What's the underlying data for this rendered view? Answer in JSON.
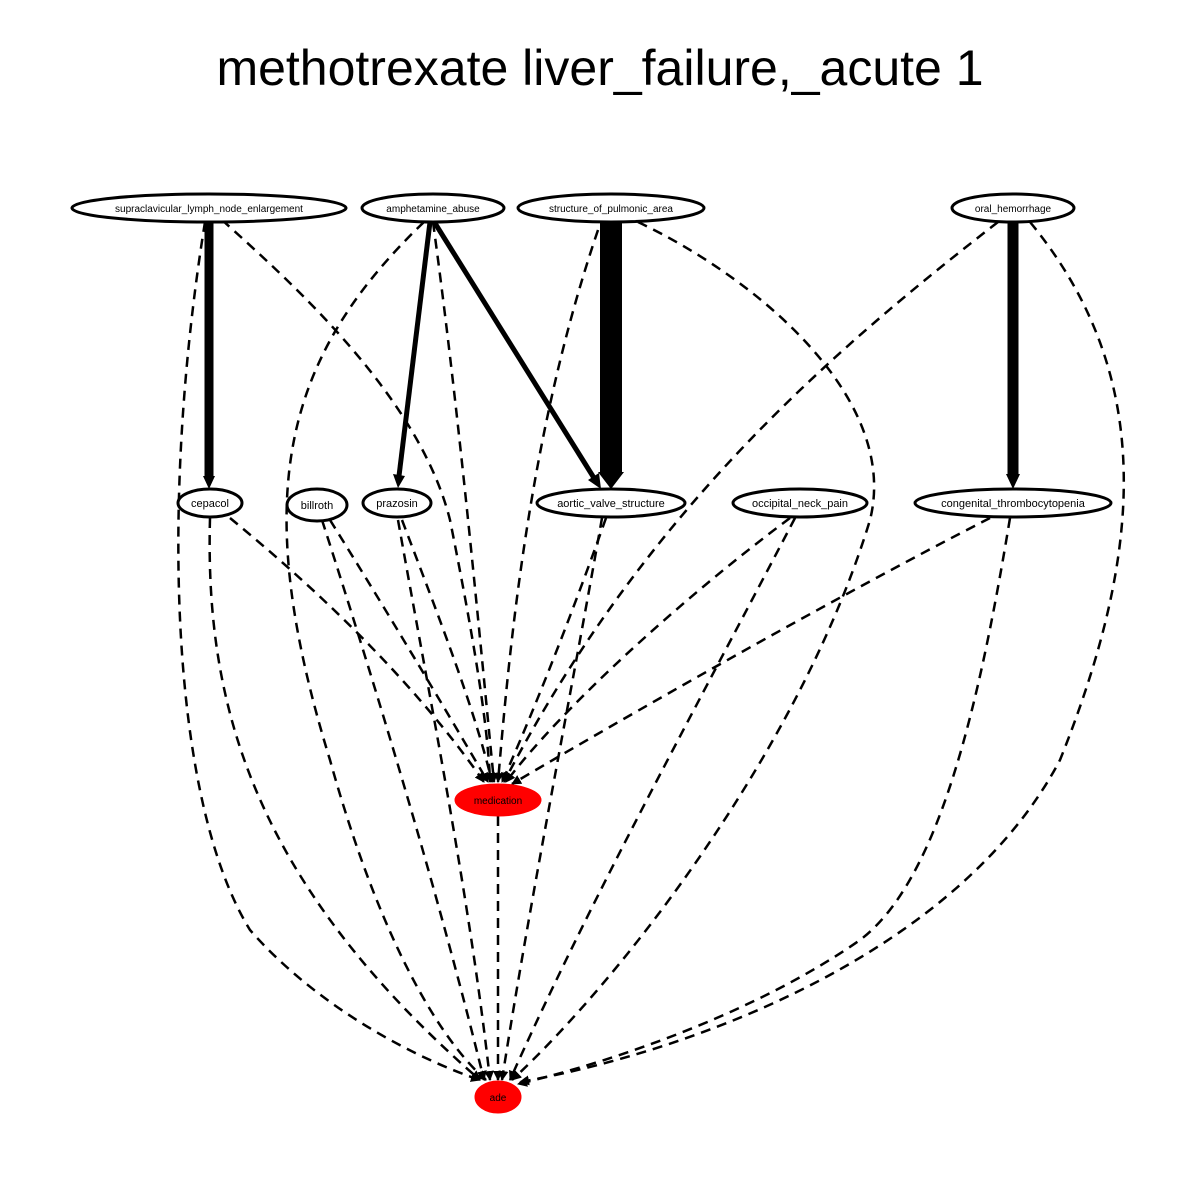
{
  "title": "methotrexate liver_failure,_acute 1",
  "colors": {
    "background": "#ffffff",
    "outcome_node": "#ff0000",
    "ink": "#000000"
  },
  "nodes": {
    "supraclavicular_lymph_node_enlargement": {
      "label": "supraclavicular_lymph_node_enlargement"
    },
    "amphetamine_abuse": {
      "label": "amphetamine_abuse"
    },
    "structure_of_pulmonic_area": {
      "label": "structure_of_pulmonic_area"
    },
    "oral_hemorrhage": {
      "label": "oral_hemorrhage"
    },
    "cepacol": {
      "label": "cepacol"
    },
    "billroth": {
      "label": "billroth"
    },
    "prazosin": {
      "label": "prazosin"
    },
    "aortic_valve_structure": {
      "label": "aortic_valve_structure"
    },
    "occipital_neck_pain": {
      "label": "occipital_neck_pain"
    },
    "congenital_thrombocytopenia": {
      "label": "congenital_thrombocytopenia"
    },
    "medication": {
      "label": "medication"
    },
    "ade": {
      "label": "ade"
    }
  },
  "edges": [
    {
      "from": "supraclavicular_lymph_node_enlargement",
      "to": "cepacol",
      "style": "solid",
      "weight": "heavy"
    },
    {
      "from": "supraclavicular_lymph_node_enlargement",
      "to": "medication",
      "style": "dashed"
    },
    {
      "from": "supraclavicular_lymph_node_enlargement",
      "to": "ade",
      "style": "dashed"
    },
    {
      "from": "amphetamine_abuse",
      "to": "prazosin",
      "style": "solid",
      "weight": "medium"
    },
    {
      "from": "amphetamine_abuse",
      "to": "aortic_valve_structure",
      "style": "solid",
      "weight": "medium"
    },
    {
      "from": "amphetamine_abuse",
      "to": "medication",
      "style": "dashed"
    },
    {
      "from": "amphetamine_abuse",
      "to": "ade",
      "style": "dashed"
    },
    {
      "from": "structure_of_pulmonic_area",
      "to": "aortic_valve_structure",
      "style": "solid",
      "weight": "very heavy"
    },
    {
      "from": "structure_of_pulmonic_area",
      "to": "medication",
      "style": "dashed"
    },
    {
      "from": "structure_of_pulmonic_area",
      "to": "ade",
      "style": "dashed"
    },
    {
      "from": "oral_hemorrhage",
      "to": "congenital_thrombocytopenia",
      "style": "solid",
      "weight": "heavy"
    },
    {
      "from": "oral_hemorrhage",
      "to": "medication",
      "style": "dashed"
    },
    {
      "from": "oral_hemorrhage",
      "to": "ade",
      "style": "dashed"
    },
    {
      "from": "cepacol",
      "to": "medication",
      "style": "dashed"
    },
    {
      "from": "cepacol",
      "to": "ade",
      "style": "dashed"
    },
    {
      "from": "billroth",
      "to": "medication",
      "style": "dashed"
    },
    {
      "from": "billroth",
      "to": "ade",
      "style": "dashed"
    },
    {
      "from": "prazosin",
      "to": "medication",
      "style": "dashed"
    },
    {
      "from": "prazosin",
      "to": "ade",
      "style": "dashed"
    },
    {
      "from": "aortic_valve_structure",
      "to": "medication",
      "style": "dashed"
    },
    {
      "from": "aortic_valve_structure",
      "to": "ade",
      "style": "dashed"
    },
    {
      "from": "occipital_neck_pain",
      "to": "medication",
      "style": "dashed"
    },
    {
      "from": "occipital_neck_pain",
      "to": "ade",
      "style": "dashed"
    },
    {
      "from": "congenital_thrombocytopenia",
      "to": "medication",
      "style": "dashed"
    },
    {
      "from": "congenital_thrombocytopenia",
      "to": "ade",
      "style": "dashed"
    },
    {
      "from": "medication",
      "to": "ade",
      "style": "dashed"
    }
  ]
}
